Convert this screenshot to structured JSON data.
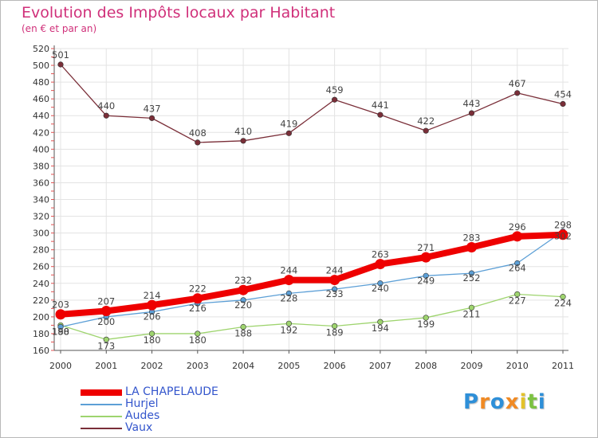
{
  "header": {
    "title": "Evolution des Impôts locaux par Habitant",
    "subtitle": "(en € et par an)"
  },
  "colors": {
    "title": "#d0307a",
    "legend_text": "#3355cc",
    "axis": "#555555",
    "grid": "#e3e3e3"
  },
  "logo": {
    "letters": [
      "P",
      "r",
      "o",
      "x",
      "i",
      "t",
      "i"
    ],
    "colors": [
      "#2e8fd8",
      "#f08a24",
      "#2e8fd8",
      "#f08a24",
      "#e3c22a",
      "#7cc242",
      "#2e8fd8"
    ]
  },
  "chart_data": {
    "type": "line",
    "title": "Evolution des Impôts locaux par Habitant",
    "subtitle": "(en € et par an)",
    "x": [
      "2000",
      "2001",
      "2002",
      "2003",
      "2004",
      "2005",
      "2006",
      "2007",
      "2008",
      "2009",
      "2010",
      "2011"
    ],
    "ylim": [
      160,
      520
    ],
    "yticks": [
      160,
      180,
      200,
      220,
      240,
      260,
      280,
      300,
      320,
      340,
      360,
      380,
      400,
      420,
      440,
      460,
      480,
      500,
      520
    ],
    "grid": true,
    "legend_position": "bottom-left",
    "series": [
      {
        "name": "LA CHAPELAUDE",
        "color": "#ee0000",
        "values": [
          203,
          207,
          214,
          222,
          232,
          244,
          244,
          263,
          271,
          283,
          296,
          298
        ],
        "labels": [
          "203",
          "207",
          "214",
          "222",
          "232",
          "244",
          "244",
          "263",
          "271",
          "283",
          "296",
          "298"
        ]
      },
      {
        "name": "Hurjel",
        "color": "#5c9fd6",
        "values": [
          188,
          200,
          206,
          216,
          220,
          228,
          233,
          240,
          249,
          252,
          264,
          302
        ],
        "labels": [
          "188",
          "200",
          "206",
          "216",
          "220",
          "228",
          "233",
          "240",
          "249",
          "252",
          "264",
          "302"
        ]
      },
      {
        "name": "Audes",
        "color": "#9ed46e",
        "values": [
          190,
          173,
          180,
          180,
          188,
          192,
          189,
          194,
          199,
          211,
          227,
          224
        ],
        "labels": [
          "190",
          "173",
          "180",
          "180",
          "188",
          "192",
          "189",
          "194",
          "199",
          "211",
          "227",
          "224"
        ]
      },
      {
        "name": "Vaux",
        "color": "#7a2e38",
        "values": [
          501,
          440,
          437,
          408,
          410,
          419,
          459,
          441,
          422,
          443,
          467,
          454
        ],
        "labels": [
          "501",
          "440",
          "437",
          "408",
          "410",
          "419",
          "459",
          "441",
          "422",
          "443",
          "467",
          "454"
        ]
      }
    ]
  }
}
